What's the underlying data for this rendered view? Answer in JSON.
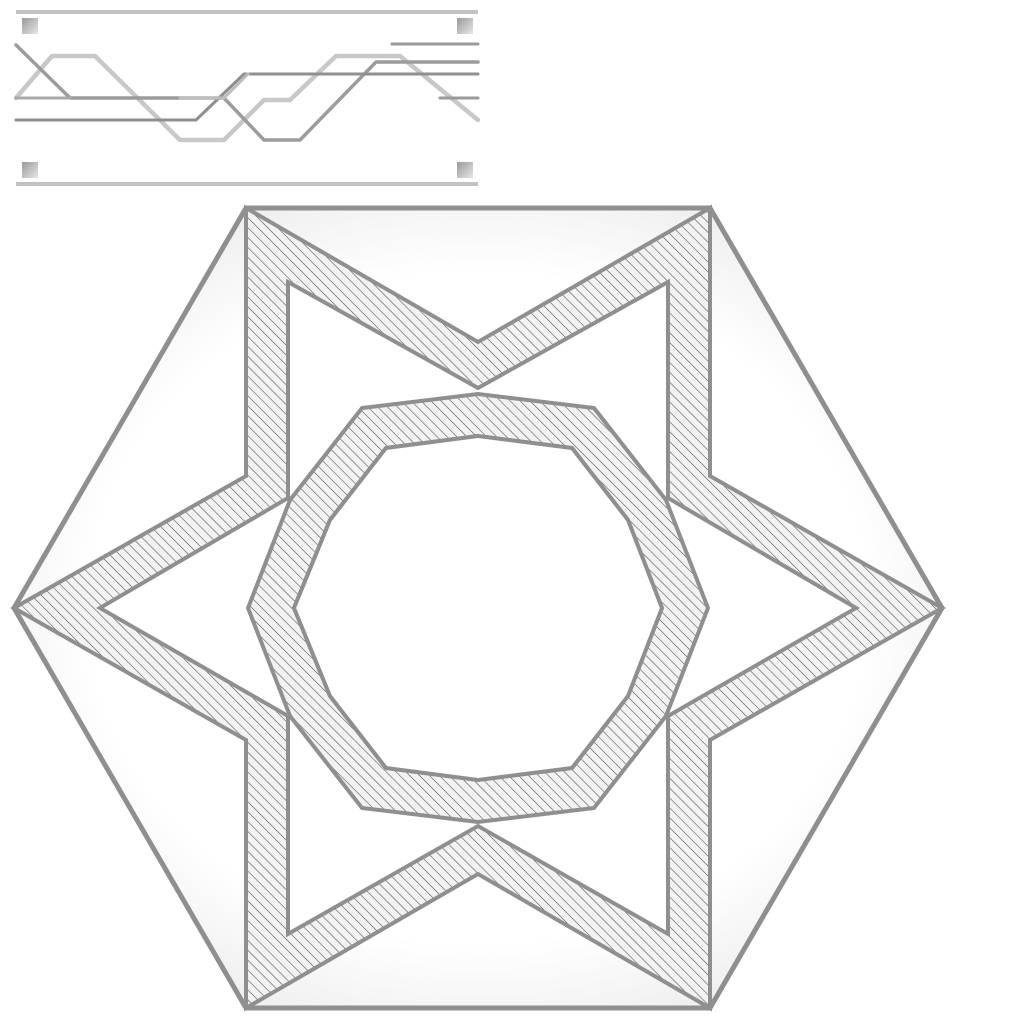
{
  "colors": {
    "background": "#ffffff",
    "stroke": "#8f8f8f",
    "light_stroke": "#b4b4b4",
    "hatch": "#4a4a4a",
    "band_fill": "#f2f2f2",
    "corner_square": "#c8c8c8"
  },
  "strip": {
    "wire_count": 4,
    "corner_marker_count": 4
  },
  "tile": {
    "shape": "hexagon",
    "star_points": 6,
    "ring_sides": 10
  }
}
